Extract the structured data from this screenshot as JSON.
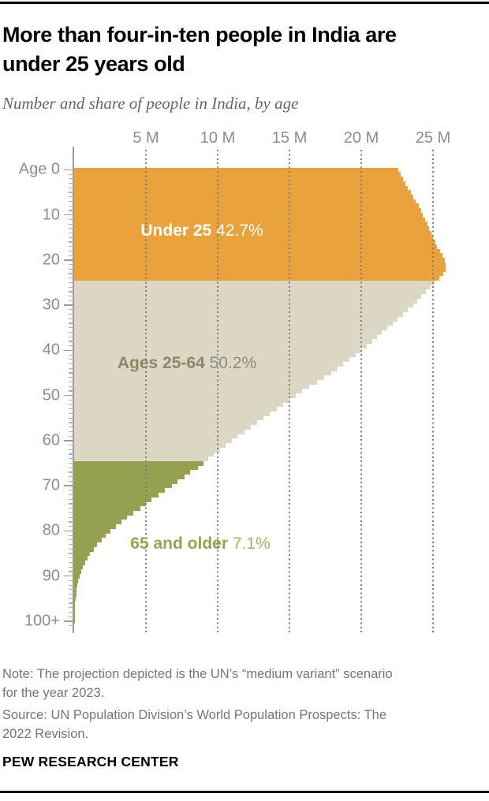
{
  "header": {
    "title_line1": "More than four-in-ten people in India are",
    "title_line2": "under 25 years old",
    "subtitle": "Number and share of people in India, by age"
  },
  "chart_data": {
    "type": "bar",
    "orientation": "horizontal",
    "title": "Number and share of people in India, by age",
    "grid": "dotted-vertical",
    "x_axis": {
      "unit": "millions of people",
      "range": [
        0,
        29
      ],
      "ticks": [
        {
          "label": "5 M",
          "value": 5
        },
        {
          "label": "10 M",
          "value": 10
        },
        {
          "label": "15 M",
          "value": 15
        },
        {
          "label": "20 M",
          "value": 20
        },
        {
          "label": "25 M",
          "value": 25
        }
      ]
    },
    "y_axis": {
      "unit": "single year of age",
      "range": [
        0,
        100
      ],
      "ticks": [
        {
          "label": "Age 0",
          "age": 0
        },
        {
          "label": "10",
          "age": 10
        },
        {
          "label": "20",
          "age": 20
        },
        {
          "label": "30",
          "age": 30
        },
        {
          "label": "40",
          "age": 40
        },
        {
          "label": "50",
          "age": 50
        },
        {
          "label": "60",
          "age": 60
        },
        {
          "label": "70",
          "age": 70
        },
        {
          "label": "80",
          "age": 80
        },
        {
          "label": "90",
          "age": 90
        },
        {
          "label": "100+",
          "age": 100
        }
      ]
    },
    "groups": [
      {
        "name": "Under 25",
        "share_label": "42.7%",
        "age_min": 0,
        "age_max": 24,
        "bar_color": "#E9A23C",
        "name_color": "#FFFFFF",
        "share_color": "#FFFFFF"
      },
      {
        "name": "Ages 25-64",
        "share_label": "50.2%",
        "age_min": 25,
        "age_max": 64,
        "bar_color": "#DBD7C4",
        "name_color": "#8B8767",
        "share_color": "#8C8C84"
      },
      {
        "name": "65 and older",
        "share_label": "7.1%",
        "age_min": 65,
        "age_max": 100,
        "bar_color": "#96A04E",
        "name_color": "#98A24F",
        "share_color": "#A9B168"
      }
    ],
    "values_millions_by_single_year_of_age": [
      22.6,
      22.75,
      22.9,
      23.1,
      23.25,
      23.45,
      23.6,
      23.8,
      24.0,
      24.15,
      24.3,
      24.45,
      24.6,
      24.75,
      24.9,
      25.0,
      25.15,
      25.3,
      25.5,
      25.65,
      25.8,
      25.9,
      25.9,
      25.7,
      25.45,
      25.1,
      24.8,
      24.5,
      24.2,
      23.9,
      23.6,
      23.25,
      22.9,
      22.55,
      22.2,
      21.8,
      21.45,
      21.1,
      20.75,
      20.4,
      20.0,
      19.6,
      19.2,
      18.75,
      18.3,
      17.9,
      17.4,
      16.9,
      16.4,
      15.9,
      15.45,
      15.0,
      14.55,
      14.1,
      13.65,
      13.2,
      12.75,
      12.3,
      11.85,
      11.4,
      11.0,
      10.55,
      10.15,
      9.75,
      9.35,
      9.0,
      8.6,
      8.1,
      7.7,
      7.2,
      6.8,
      6.3,
      5.9,
      5.4,
      5.0,
      4.6,
      4.1,
      3.7,
      3.3,
      2.9,
      2.5,
      2.2,
      1.9,
      1.6,
      1.35,
      1.12,
      0.92,
      0.75,
      0.6,
      0.48,
      0.38,
      0.3,
      0.23,
      0.18,
      0.14,
      0.1,
      0.08,
      0.06,
      0.04,
      0.03,
      0.05
    ]
  },
  "footer": {
    "note_line1": "Note: The projection depicted is the UN’s “medium variant” scenario",
    "note_line2": "for the year 2023.",
    "source_line1": "Source: UN Population Division’s World Population Prospects: The",
    "source_line2": "2022 Revision.",
    "brand": "PEW RESEARCH CENTER"
  }
}
